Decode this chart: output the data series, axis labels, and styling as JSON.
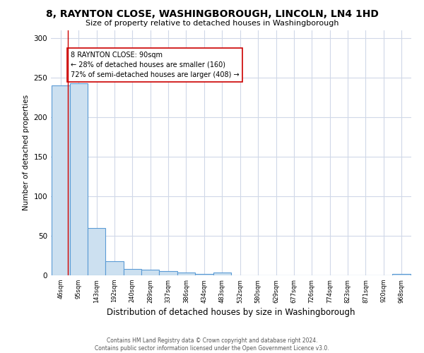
{
  "title": "8, RAYNTON CLOSE, WASHINGBOROUGH, LINCOLN, LN4 1HD",
  "subtitle": "Size of property relative to detached houses in Washingborough",
  "xlabel": "Distribution of detached houses by size in Washingborough",
  "ylabel": "Number of detached properties",
  "footnote1": "Contains HM Land Registry data © Crown copyright and database right 2024.",
  "footnote2": "Contains public sector information licensed under the Open Government Licence v3.0.",
  "annotation_title": "8 RAYNTON CLOSE: 90sqm",
  "annotation_line1": "← 28% of detached houses are smaller (160)",
  "annotation_line2": "72% of semi-detached houses are larger (408) →",
  "property_size": 90,
  "bar_edges": [
    46,
    95,
    143,
    192,
    240,
    289,
    337,
    386,
    434,
    483,
    532,
    580,
    629,
    677,
    726,
    774,
    823,
    871,
    920,
    968,
    1017
  ],
  "bar_heights": [
    240,
    243,
    60,
    18,
    8,
    7,
    5,
    4,
    2,
    4,
    0,
    0,
    0,
    0,
    0,
    0,
    0,
    0,
    0,
    2
  ],
  "bar_color": "#cce0f0",
  "bar_edge_color": "#5b9bd5",
  "vline_color": "#cc0000",
  "ylim": [
    0,
    310
  ],
  "yticks": [
    0,
    50,
    100,
    150,
    200,
    250,
    300
  ],
  "background_color": "#ffffff",
  "grid_color": "#d0d8e8",
  "title_fontsize": 10,
  "subtitle_fontsize": 8,
  "xlabel_fontsize": 8.5,
  "ylabel_fontsize": 7.5,
  "footnote_fontsize": 5.5,
  "annotation_fontsize": 7,
  "xtick_fontsize": 6,
  "ytick_fontsize": 7.5
}
